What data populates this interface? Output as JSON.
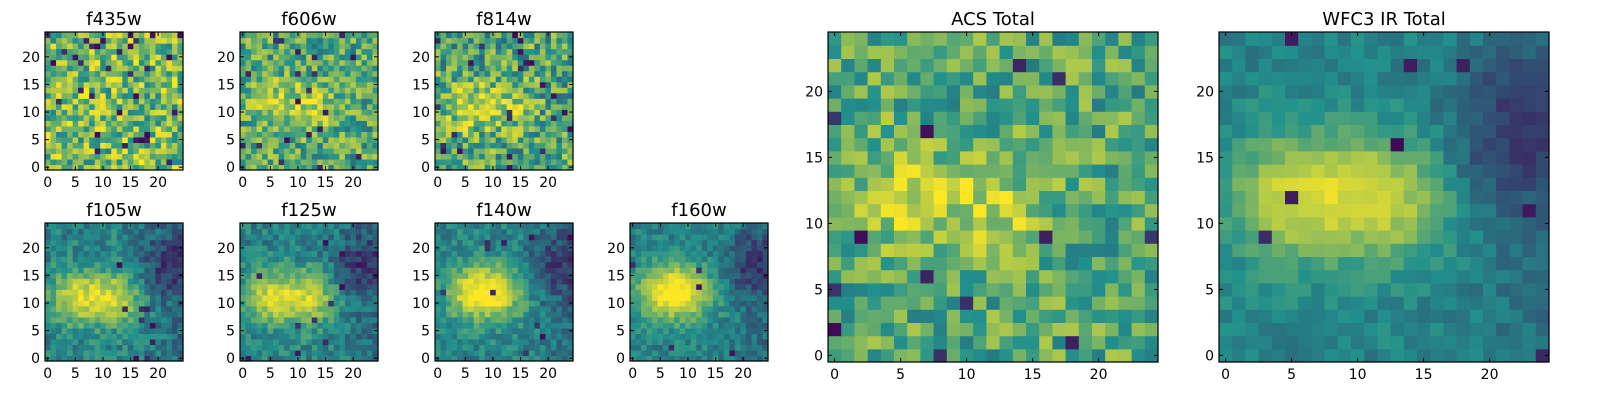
{
  "colors": {
    "low": "#440154",
    "mid": "#21918c",
    "high": "#fde725",
    "frame": "#000000",
    "background": "#ffffff"
  },
  "chart_data": [
    {
      "id": "f435w",
      "type": "heatmap",
      "title": "f435w",
      "shape": [
        25,
        25
      ],
      "xlim": [
        0,
        24
      ],
      "ylim": [
        0,
        24
      ],
      "xticks": [
        "0",
        "5",
        "10",
        "15",
        "20"
      ],
      "yticks": [
        "0",
        "5",
        "10",
        "15",
        "20"
      ],
      "pattern": "noisy",
      "source_centers": [],
      "noise": 0.28,
      "dark_pixel_rate": 0.05
    },
    {
      "id": "f606w",
      "type": "heatmap",
      "title": "f606w",
      "shape": [
        25,
        25
      ],
      "xlim": [
        0,
        24
      ],
      "ylim": [
        0,
        24
      ],
      "xticks": [
        "0",
        "5",
        "10",
        "15",
        "20"
      ],
      "yticks": [
        "0",
        "5",
        "10",
        "15",
        "20"
      ],
      "pattern": "noisy_source",
      "source_centers": [
        [
          6,
          12
        ],
        [
          13,
          11
        ]
      ],
      "noise": 0.24,
      "dark_pixel_rate": 0.04
    },
    {
      "id": "f814w",
      "type": "heatmap",
      "title": "f814w",
      "shape": [
        25,
        25
      ],
      "xlim": [
        0,
        24
      ],
      "ylim": [
        0,
        24
      ],
      "xticks": [
        "0",
        "5",
        "10",
        "15",
        "20"
      ],
      "yticks": [
        "0",
        "5",
        "10",
        "15",
        "20"
      ],
      "pattern": "noisy_source",
      "source_centers": [
        [
          5,
          11
        ],
        [
          12,
          11
        ]
      ],
      "noise": 0.26,
      "dark_pixel_rate": 0.05
    },
    {
      "id": "f105w",
      "type": "heatmap",
      "title": "f105w",
      "shape": [
        25,
        25
      ],
      "xlim": [
        0,
        24
      ],
      "ylim": [
        0,
        24
      ],
      "xticks": [
        "0",
        "5",
        "10",
        "15",
        "20"
      ],
      "yticks": [
        "0",
        "5",
        "10",
        "15",
        "20"
      ],
      "pattern": "smooth_source",
      "source_centers": [
        [
          5,
          11
        ],
        [
          12,
          11
        ]
      ],
      "noise": 0.12,
      "dark_pixel_rate": 0.02
    },
    {
      "id": "f125w",
      "type": "heatmap",
      "title": "f125w",
      "shape": [
        25,
        25
      ],
      "xlim": [
        0,
        24
      ],
      "ylim": [
        0,
        24
      ],
      "xticks": [
        "0",
        "5",
        "10",
        "15",
        "20"
      ],
      "yticks": [
        "0",
        "5",
        "10",
        "15",
        "20"
      ],
      "pattern": "smooth_source",
      "source_centers": [
        [
          5,
          11
        ],
        [
          12,
          11
        ]
      ],
      "noise": 0.12,
      "dark_pixel_rate": 0.02
    },
    {
      "id": "f140w",
      "type": "heatmap",
      "title": "f140w",
      "shape": [
        25,
        25
      ],
      "xlim": [
        0,
        24
      ],
      "ylim": [
        0,
        24
      ],
      "xticks": [
        "0",
        "5",
        "10",
        "15",
        "20"
      ],
      "yticks": [
        "0",
        "5",
        "10",
        "15",
        "20"
      ],
      "pattern": "smooth_source",
      "source_centers": [
        [
          6,
          12
        ],
        [
          11,
          12
        ]
      ],
      "noise": 0.11,
      "dark_pixel_rate": 0.015
    },
    {
      "id": "f160w",
      "type": "heatmap",
      "title": "f160w",
      "shape": [
        25,
        25
      ],
      "xlim": [
        0,
        24
      ],
      "ylim": [
        0,
        24
      ],
      "xticks": [
        "0",
        "5",
        "10",
        "15",
        "20"
      ],
      "yticks": [
        "0",
        "5",
        "10",
        "15",
        "20"
      ],
      "pattern": "smooth_source",
      "source_centers": [
        [
          5,
          12
        ],
        [
          10,
          12
        ]
      ],
      "noise": 0.1,
      "dark_pixel_rate": 0.015
    },
    {
      "id": "acs_total",
      "type": "heatmap",
      "title": "ACS Total",
      "shape": [
        25,
        25
      ],
      "xlim": [
        0,
        24
      ],
      "ylim": [
        0,
        24
      ],
      "xticks": [
        "0",
        "5",
        "10",
        "15",
        "20"
      ],
      "yticks": [
        "0",
        "5",
        "10",
        "15",
        "20"
      ],
      "pattern": "noisy_source",
      "source_centers": [
        [
          5,
          12
        ],
        [
          12,
          11
        ]
      ],
      "noise": 0.2,
      "dark_pixel_rate": 0.03
    },
    {
      "id": "wfc3_ir_total",
      "type": "heatmap",
      "title": "WFC3 IR Total",
      "shape": [
        25,
        25
      ],
      "xlim": [
        0,
        24
      ],
      "ylim": [
        0,
        24
      ],
      "xticks": [
        "0",
        "5",
        "10",
        "15",
        "20"
      ],
      "yticks": [
        "0",
        "5",
        "10",
        "15",
        "20"
      ],
      "pattern": "smooth_source",
      "source_centers": [
        [
          5,
          12
        ],
        [
          12,
          12
        ]
      ],
      "noise": 0.07,
      "dark_pixel_rate": 0.01
    }
  ]
}
